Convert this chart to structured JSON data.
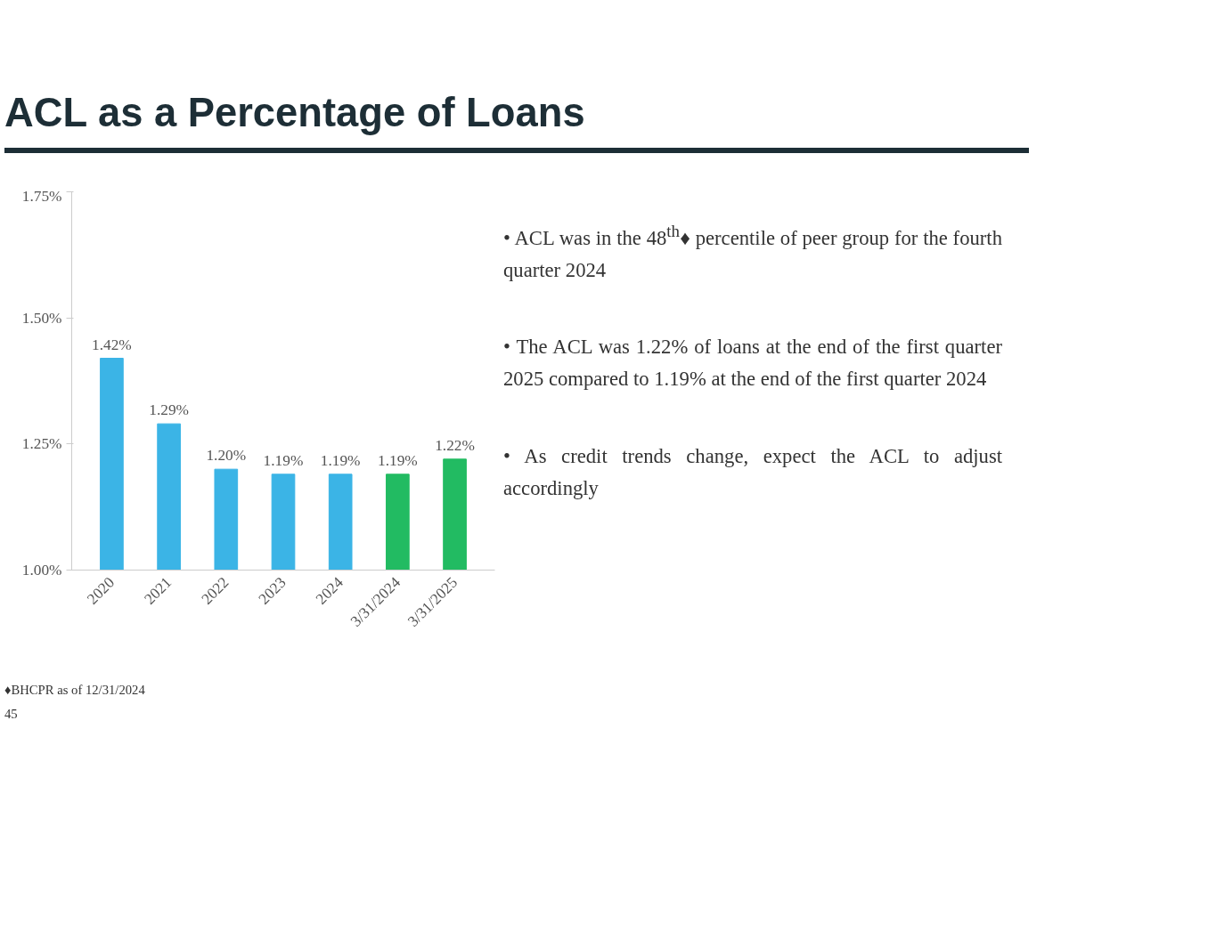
{
  "chart_data": {
    "type": "bar",
    "title": "ACL as a Percentage of Loans",
    "categories": [
      "2020",
      "2021",
      "2022",
      "2023",
      "2024",
      "3/31/2024",
      "3/31/2025"
    ],
    "values": [
      1.42,
      1.29,
      1.2,
      1.19,
      1.19,
      1.19,
      1.22
    ],
    "colors": [
      "#3bb4e6",
      "#3bb4e6",
      "#3bb4e6",
      "#3bb4e6",
      "#3bb4e6",
      "#22bb62",
      "#22bb62"
    ],
    "value_labels": [
      "1.42%",
      "1.29%",
      "1.20%",
      "1.19%",
      "1.19%",
      "1.19%",
      "1.22%"
    ],
    "ylim": [
      1.0,
      1.75
    ],
    "yticks": [
      {
        "value": 1.0,
        "label": "1.00%"
      },
      {
        "value": 1.25,
        "label": "1.25%"
      },
      {
        "value": 1.5,
        "label": "1.50%"
      },
      {
        "value": 1.75,
        "label": "1.75%"
      }
    ],
    "grid": false,
    "annotations": [
      "• ACL was in the 48$^{th}$♦ percentile of peer group for the fourth quarter 2024",
      "• The ACL was 1.22% of loans at the end of the first quarter 2025 compared to 1.19% at the end of the first quarter 2024",
      "• As credit trends change, expect the ACL to adjust accordingly",
      "♦BHCPR as of 12/31/2024",
      "45"
    ]
  }
}
